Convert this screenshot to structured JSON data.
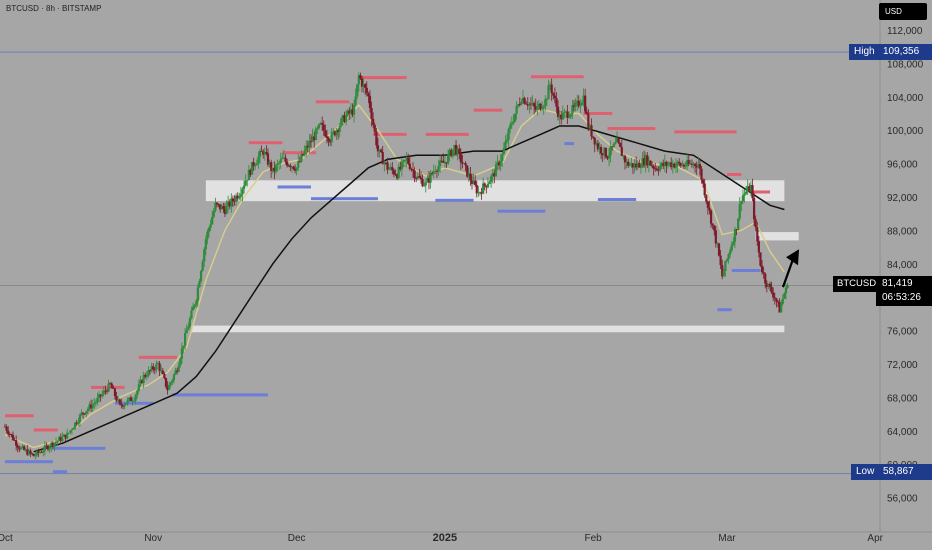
{
  "header": {
    "symbol_line": "BTCUSD · 8h · BITSTAMP",
    "currency": "USD"
  },
  "markers": {
    "high": {
      "label": "High",
      "value": "109,356"
    },
    "low": {
      "label": "Low",
      "value": "58,867"
    },
    "last": {
      "label": "BTCUSD",
      "value": "81,419",
      "countdown": "06:53:26"
    }
  },
  "colors": {
    "background": "#a6a6a6",
    "up": "#2e8b3a",
    "down": "#7a1a2a",
    "ema_fast": "#d8cf8a",
    "ma_slow": "#111111",
    "resistance": "#e06070",
    "support": "#6b7fd7",
    "zone": "#e4e4e4",
    "badge": "#1e3a8a",
    "price_badge": "#000000"
  },
  "chart_data": {
    "type": "candlestick",
    "interval": "8h",
    "exchange": "BITSTAMP",
    "ylim": [
      53000,
      114000
    ],
    "y_ticks": [
      "112,000",
      "108,000",
      "104,000",
      "100,000",
      "96,000",
      "92,000",
      "88,000",
      "84,000",
      "80,000",
      "76,000",
      "72,000",
      "68,000",
      "64,000",
      "60,000",
      "56,000"
    ],
    "x_ticks": [
      "Oct",
      "Nov",
      "Dec",
      "2025",
      "Feb",
      "Mar",
      "Apr"
    ],
    "x_range_days": [
      0,
      183
    ],
    "x_tick_days": [
      0,
      31,
      61,
      92,
      123,
      151,
      182
    ],
    "high": 109356,
    "low": 58867,
    "last": 81419,
    "price_path": [
      [
        0,
        64500
      ],
      [
        3,
        62000
      ],
      [
        6,
        61000
      ],
      [
        10,
        62500
      ],
      [
        13,
        63500
      ],
      [
        16,
        66000
      ],
      [
        19,
        67500
      ],
      [
        22,
        69500
      ],
      [
        24,
        67000
      ],
      [
        27,
        68000
      ],
      [
        29,
        70500
      ],
      [
        32,
        72000
      ],
      [
        34,
        69000
      ],
      [
        36,
        71500
      ],
      [
        38,
        76000
      ],
      [
        40,
        80000
      ],
      [
        42,
        87000
      ],
      [
        44,
        91000
      ],
      [
        46,
        90500
      ],
      [
        49,
        92500
      ],
      [
        52,
        96000
      ],
      [
        54,
        97500
      ],
      [
        56,
        95000
      ],
      [
        58,
        96500
      ],
      [
        61,
        95500
      ],
      [
        63,
        97800
      ],
      [
        66,
        100500
      ],
      [
        68,
        99000
      ],
      [
        71,
        101500
      ],
      [
        73,
        102500
      ],
      [
        74,
        106500
      ],
      [
        76,
        104000
      ],
      [
        78,
        97500
      ],
      [
        80,
        95500
      ],
      [
        82,
        94800
      ],
      [
        84,
        96500
      ],
      [
        86,
        94500
      ],
      [
        88,
        93500
      ],
      [
        90,
        95500
      ],
      [
        92,
        96200
      ],
      [
        94,
        98000
      ],
      [
        97,
        94500
      ],
      [
        99,
        92500
      ],
      [
        102,
        94500
      ],
      [
        104,
        97000
      ],
      [
        106,
        101000
      ],
      [
        108,
        104000
      ],
      [
        111,
        102500
      ],
      [
        113,
        103500
      ],
      [
        114,
        105500
      ],
      [
        116,
        101500
      ],
      [
        119,
        102500
      ],
      [
        121,
        104000
      ],
      [
        122,
        100500
      ],
      [
        124,
        98000
      ],
      [
        126,
        97000
      ],
      [
        128,
        98500
      ],
      [
        130,
        96000
      ],
      [
        132,
        95700
      ],
      [
        134,
        96500
      ],
      [
        136,
        95500
      ],
      [
        139,
        96000
      ],
      [
        142,
        95800
      ],
      [
        145,
        96000
      ],
      [
        147,
        91000
      ],
      [
        149,
        86000
      ],
      [
        150,
        82500
      ],
      [
        151,
        84500
      ],
      [
        152,
        86500
      ],
      [
        153,
        88500
      ],
      [
        154,
        92000
      ],
      [
        156,
        93200
      ],
      [
        157,
        88000
      ],
      [
        158,
        84000
      ],
      [
        159,
        82000
      ],
      [
        160,
        81000
      ],
      [
        161,
        80000
      ],
      [
        162,
        78500
      ],
      [
        163,
        80500
      ],
      [
        164,
        81419
      ]
    ],
    "ema_fast": [
      [
        0,
        63500
      ],
      [
        6,
        62000
      ],
      [
        12,
        63000
      ],
      [
        18,
        66000
      ],
      [
        24,
        68000
      ],
      [
        30,
        69500
      ],
      [
        34,
        71000
      ],
      [
        38,
        74000
      ],
      [
        42,
        82000
      ],
      [
        46,
        88000
      ],
      [
        50,
        92000
      ],
      [
        54,
        95000
      ],
      [
        58,
        96000
      ],
      [
        62,
        96500
      ],
      [
        66,
        98500
      ],
      [
        70,
        100500
      ],
      [
        74,
        103000
      ],
      [
        78,
        100000
      ],
      [
        82,
        96500
      ],
      [
        88,
        94500
      ],
      [
        92,
        95500
      ],
      [
        98,
        94500
      ],
      [
        104,
        96000
      ],
      [
        108,
        100500
      ],
      [
        112,
        102500
      ],
      [
        116,
        102000
      ],
      [
        120,
        102000
      ],
      [
        124,
        99500
      ],
      [
        128,
        97500
      ],
      [
        134,
        96000
      ],
      [
        140,
        95800
      ],
      [
        146,
        94000
      ],
      [
        150,
        87500
      ],
      [
        154,
        88000
      ],
      [
        157,
        89000
      ],
      [
        160,
        85500
      ],
      [
        163,
        83000
      ]
    ],
    "ma_slow": [
      [
        6,
        61500
      ],
      [
        12,
        62500
      ],
      [
        18,
        64000
      ],
      [
        24,
        65500
      ],
      [
        30,
        67000
      ],
      [
        36,
        68500
      ],
      [
        40,
        70500
      ],
      [
        44,
        73500
      ],
      [
        48,
        77000
      ],
      [
        52,
        80500
      ],
      [
        56,
        84000
      ],
      [
        60,
        87000
      ],
      [
        64,
        89500
      ],
      [
        68,
        91500
      ],
      [
        72,
        93500
      ],
      [
        76,
        95500
      ],
      [
        80,
        96500
      ],
      [
        86,
        97000
      ],
      [
        92,
        97000
      ],
      [
        98,
        97500
      ],
      [
        104,
        97500
      ],
      [
        108,
        98500
      ],
      [
        112,
        99500
      ],
      [
        116,
        100500
      ],
      [
        120,
        100500
      ],
      [
        126,
        99500
      ],
      [
        132,
        98500
      ],
      [
        138,
        97500
      ],
      [
        144,
        97000
      ],
      [
        148,
        95500
      ],
      [
        152,
        94000
      ],
      [
        156,
        92500
      ],
      [
        160,
        91000
      ],
      [
        163,
        90500
      ]
    ],
    "zones": [
      {
        "from_day": 42,
        "to_day": 163,
        "top": 94000,
        "bottom": 91500
      },
      {
        "from_day": 39,
        "to_day": 163,
        "top": 76600,
        "bottom": 75800
      },
      {
        "from_day": 157,
        "to_day": 166,
        "top": 87800,
        "bottom": 86800
      }
    ],
    "resistance_levels": [
      {
        "from_day": 0,
        "to_day": 6,
        "y": 65800
      },
      {
        "from_day": 6,
        "to_day": 11,
        "y": 64100
      },
      {
        "from_day": 18,
        "to_day": 25,
        "y": 69200
      },
      {
        "from_day": 28,
        "to_day": 36,
        "y": 72800
      },
      {
        "from_day": 51,
        "to_day": 58,
        "y": 98500
      },
      {
        "from_day": 58,
        "to_day": 65,
        "y": 97300
      },
      {
        "from_day": 65,
        "to_day": 72,
        "y": 103400
      },
      {
        "from_day": 77,
        "to_day": 84,
        "y": 99500
      },
      {
        "from_day": 74,
        "to_day": 84,
        "y": 106300
      },
      {
        "from_day": 88,
        "to_day": 97,
        "y": 99500
      },
      {
        "from_day": 98,
        "to_day": 104,
        "y": 102400
      },
      {
        "from_day": 110,
        "to_day": 121,
        "y": 106400
      },
      {
        "from_day": 121,
        "to_day": 127,
        "y": 102000
      },
      {
        "from_day": 126,
        "to_day": 136,
        "y": 100200
      },
      {
        "from_day": 140,
        "to_day": 153,
        "y": 99800
      },
      {
        "from_day": 151,
        "to_day": 154,
        "y": 94700
      },
      {
        "from_day": 156,
        "to_day": 160,
        "y": 92600
      }
    ],
    "support_levels": [
      {
        "from_day": 0,
        "to_day": 10,
        "y": 60300
      },
      {
        "from_day": 10,
        "to_day": 21,
        "y": 61900
      },
      {
        "from_day": 10,
        "to_day": 13,
        "y": 59100
      },
      {
        "from_day": 23,
        "to_day": 31,
        "y": 67300
      },
      {
        "from_day": 35,
        "to_day": 55,
        "y": 68300
      },
      {
        "from_day": 57,
        "to_day": 64,
        "y": 93200
      },
      {
        "from_day": 64,
        "to_day": 78,
        "y": 91800
      },
      {
        "from_day": 90,
        "to_day": 98,
        "y": 91600
      },
      {
        "from_day": 103,
        "to_day": 113,
        "y": 90300
      },
      {
        "from_day": 117,
        "to_day": 119,
        "y": 98400
      },
      {
        "from_day": 124,
        "to_day": 132,
        "y": 91700
      },
      {
        "from_day": 149,
        "to_day": 152,
        "y": 78500
      },
      {
        "from_day": 152,
        "to_day": 158,
        "y": 83200
      }
    ]
  }
}
